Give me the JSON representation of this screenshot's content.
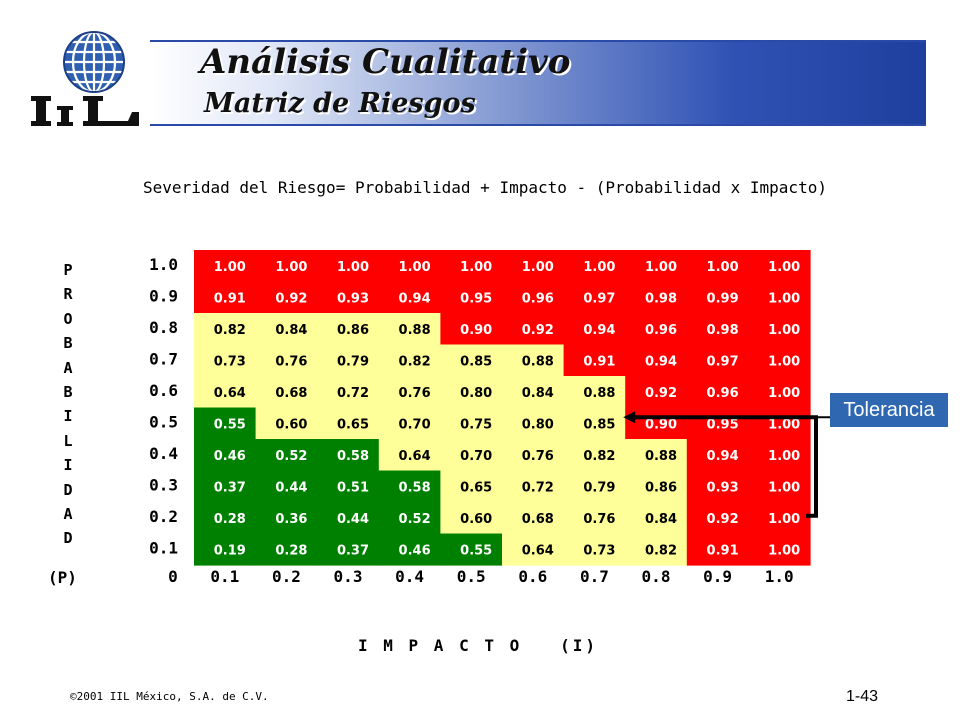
{
  "header": {
    "title": "Análisis Cualitativo",
    "subtitle": "Matriz de Riesgos",
    "logo_text": "IIL"
  },
  "formula": "Severidad del Riesgo= Probabilidad + Impacto - (Probabilidad x Impacto)",
  "side_label_letters": [
    "P",
    "R",
    "O",
    "B",
    "A",
    "B",
    "I",
    "L",
    "I",
    "D",
    "A",
    "D"
  ],
  "p_label": "(P)",
  "i_label": "I M P A C T O   (I)",
  "tolerance_label": "Tolerancia",
  "footer": {
    "copyright": "©2001 IIL México, S.A. de C.V.",
    "page": "1-43"
  },
  "colors": {
    "high": "#ff0000",
    "medium": "#ffff99",
    "low": "#008000",
    "banner_blue": "#1f3f9e",
    "tolerance_box": "#2f68b0"
  },
  "chart_data": {
    "type": "heatmap",
    "x_origin_label": "0",
    "x_ticks": [
      "0.1",
      "0.2",
      "0.3",
      "0.4",
      "0.5",
      "0.6",
      "0.7",
      "0.8",
      "0.9",
      "1.0"
    ],
    "y_ticks": [
      "1.0",
      "0.9",
      "0.8",
      "0.7",
      "0.6",
      "0.5",
      "0.4",
      "0.3",
      "0.2",
      "0.1"
    ],
    "rows": [
      {
        "cells": [
          "1.00",
          "1.00",
          "1.00",
          "1.00",
          "1.00",
          "1.00",
          "1.00",
          "1.00",
          "1.00",
          "1.00"
        ],
        "zones": [
          "high",
          "high",
          "high",
          "high",
          "high",
          "high",
          "high",
          "high",
          "high",
          "high"
        ]
      },
      {
        "cells": [
          "0.91",
          "0.92",
          "0.93",
          "0.94",
          "0.95",
          "0.96",
          "0.97",
          "0.98",
          "0.99",
          "1.00"
        ],
        "zones": [
          "high",
          "high",
          "high",
          "high",
          "high",
          "high",
          "high",
          "high",
          "high",
          "high"
        ]
      },
      {
        "cells": [
          "0.82",
          "0.84",
          "0.86",
          "0.88",
          "0.90",
          "0.92",
          "0.94",
          "0.96",
          "0.98",
          "1.00"
        ],
        "zones": [
          "medium",
          "medium",
          "medium",
          "medium",
          "high",
          "high",
          "high",
          "high",
          "high",
          "high"
        ]
      },
      {
        "cells": [
          "0.73",
          "0.76",
          "0.79",
          "0.82",
          "0.85",
          "0.88",
          "0.91",
          "0.94",
          "0.97",
          "1.00"
        ],
        "zones": [
          "medium",
          "medium",
          "medium",
          "medium",
          "medium",
          "medium",
          "high",
          "high",
          "high",
          "high"
        ]
      },
      {
        "cells": [
          "0.64",
          "0.68",
          "0.72",
          "0.76",
          "0.80",
          "0.84",
          "0.88",
          "0.92",
          "0.96",
          "1.00"
        ],
        "zones": [
          "medium",
          "medium",
          "medium",
          "medium",
          "medium",
          "medium",
          "medium",
          "high",
          "high",
          "high"
        ]
      },
      {
        "cells": [
          "0.55",
          "0.60",
          "0.65",
          "0.70",
          "0.75",
          "0.80",
          "0.85",
          "0.90",
          "0.95",
          "1.00"
        ],
        "zones": [
          "low",
          "medium",
          "medium",
          "medium",
          "medium",
          "medium",
          "medium",
          "high",
          "high",
          "high"
        ]
      },
      {
        "cells": [
          "0.46",
          "0.52",
          "0.58",
          "0.64",
          "0.70",
          "0.76",
          "0.82",
          "0.88",
          "0.94",
          "1.00"
        ],
        "zones": [
          "low",
          "low",
          "low",
          "medium",
          "medium",
          "medium",
          "medium",
          "medium",
          "high",
          "high"
        ]
      },
      {
        "cells": [
          "0.37",
          "0.44",
          "0.51",
          "0.58",
          "0.65",
          "0.72",
          "0.79",
          "0.86",
          "0.93",
          "1.00"
        ],
        "zones": [
          "low",
          "low",
          "low",
          "low",
          "medium",
          "medium",
          "medium",
          "medium",
          "high",
          "high"
        ]
      },
      {
        "cells": [
          "0.28",
          "0.36",
          "0.44",
          "0.52",
          "0.60",
          "0.68",
          "0.76",
          "0.84",
          "0.92",
          "1.00"
        ],
        "zones": [
          "low",
          "low",
          "low",
          "low",
          "medium",
          "medium",
          "medium",
          "medium",
          "high",
          "high"
        ]
      },
      {
        "cells": [
          "0.19",
          "0.28",
          "0.37",
          "0.46",
          "0.55",
          "0.64",
          "0.73",
          "0.82",
          "0.91",
          "1.00"
        ],
        "zones": [
          "low",
          "low",
          "low",
          "low",
          "low",
          "medium",
          "medium",
          "medium",
          "high",
          "high"
        ]
      }
    ]
  }
}
